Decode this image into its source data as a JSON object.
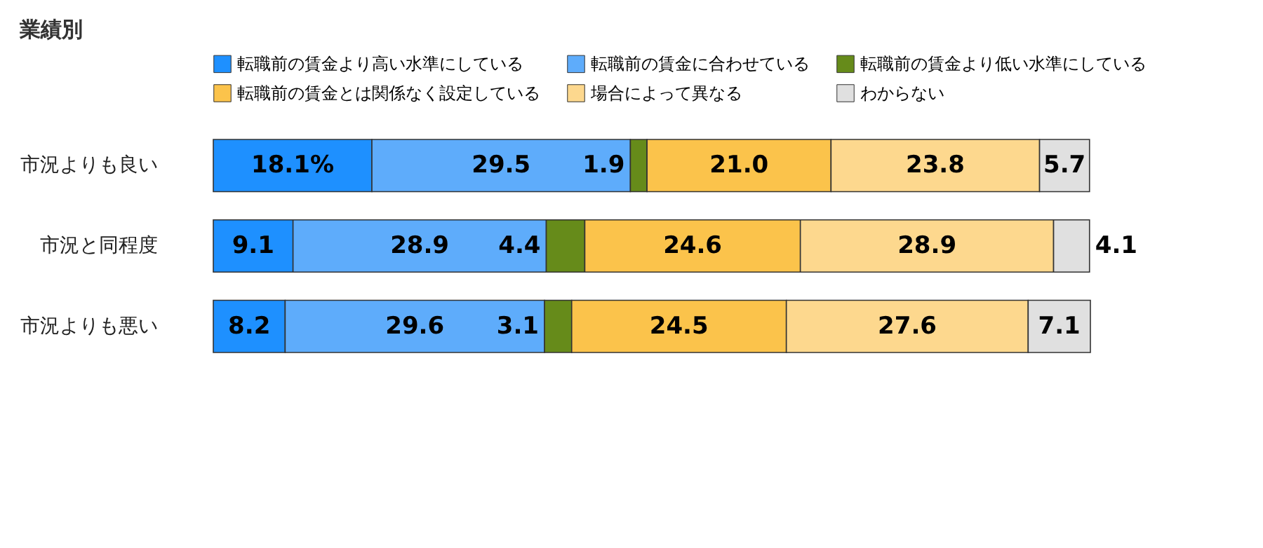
{
  "chart_data": {
    "type": "bar",
    "orientation": "horizontal",
    "stacked": true,
    "title": "業績別",
    "legend": "top",
    "categories": [
      "市況よりも良い",
      "市況と同程度",
      "市況よりも悪い"
    ],
    "series": [
      {
        "name": "転職前の賃金より高い水準にしている",
        "color": "#1e90ff",
        "values": [
          18.1,
          9.1,
          8.2
        ],
        "value_labels": [
          "18.1%",
          "9.1",
          "8.2"
        ]
      },
      {
        "name": "転職前の賃金に合わせている",
        "color": "#5eacfb",
        "values": [
          29.5,
          28.9,
          29.6
        ],
        "value_labels": [
          "29.5",
          "28.9",
          "29.6"
        ]
      },
      {
        "name": "転職前の賃金より低い水準にしている",
        "color": "#668b1a",
        "values": [
          1.9,
          4.4,
          3.1
        ],
        "value_labels": [
          "1.9",
          "4.4",
          "3.1"
        ]
      },
      {
        "name": "転職前の賃金とは関係なく設定している",
        "color": "#fbc34b",
        "values": [
          21.0,
          24.6,
          24.5
        ],
        "value_labels": [
          "21.0",
          "24.6",
          "24.5"
        ]
      },
      {
        "name": "場合によって異なる",
        "color": "#fdd88e",
        "values": [
          23.8,
          28.9,
          27.6
        ],
        "value_labels": [
          "23.8",
          "28.9",
          "27.6"
        ]
      },
      {
        "name": "わからない",
        "color": "#e0e0e0",
        "values": [
          5.7,
          4.1,
          7.1
        ],
        "value_labels": [
          "5.7",
          "4.1",
          "7.1"
        ]
      }
    ]
  }
}
